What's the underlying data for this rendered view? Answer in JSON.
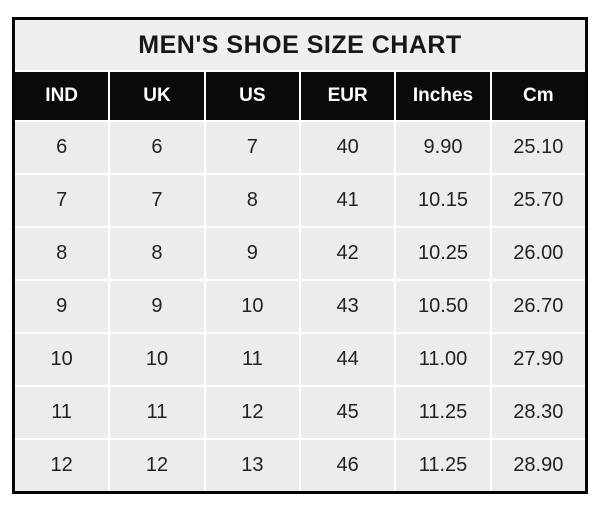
{
  "title": "MEN'S SHOE SIZE CHART",
  "colors": {
    "outer_border": "#050505",
    "title_bg": "#f0efee",
    "header_bg": "#0a0a0a",
    "header_text": "#fdfdfd",
    "cell_bg": "#edecec",
    "cell_text": "#222222",
    "gridline": "#ffffff",
    "page_bg": "#ffffff"
  },
  "chart_data": {
    "type": "table",
    "title": "MEN'S SHOE SIZE CHART",
    "columns": [
      "IND",
      "UK",
      "US",
      "EUR",
      "Inches",
      "Cm"
    ],
    "rows": [
      [
        "6",
        "6",
        "7",
        "40",
        "9.90",
        "25.10"
      ],
      [
        "7",
        "7",
        "8",
        "41",
        "10.15",
        "25.70"
      ],
      [
        "8",
        "8",
        "9",
        "42",
        "10.25",
        "26.00"
      ],
      [
        "9",
        "9",
        "10",
        "43",
        "10.50",
        "26.70"
      ],
      [
        "10",
        "10",
        "11",
        "44",
        "11.00",
        "27.90"
      ],
      [
        "11",
        "11",
        "12",
        "45",
        "11.25",
        "28.30"
      ],
      [
        "12",
        "12",
        "13",
        "46",
        "11.25",
        "28.90"
      ]
    ]
  }
}
